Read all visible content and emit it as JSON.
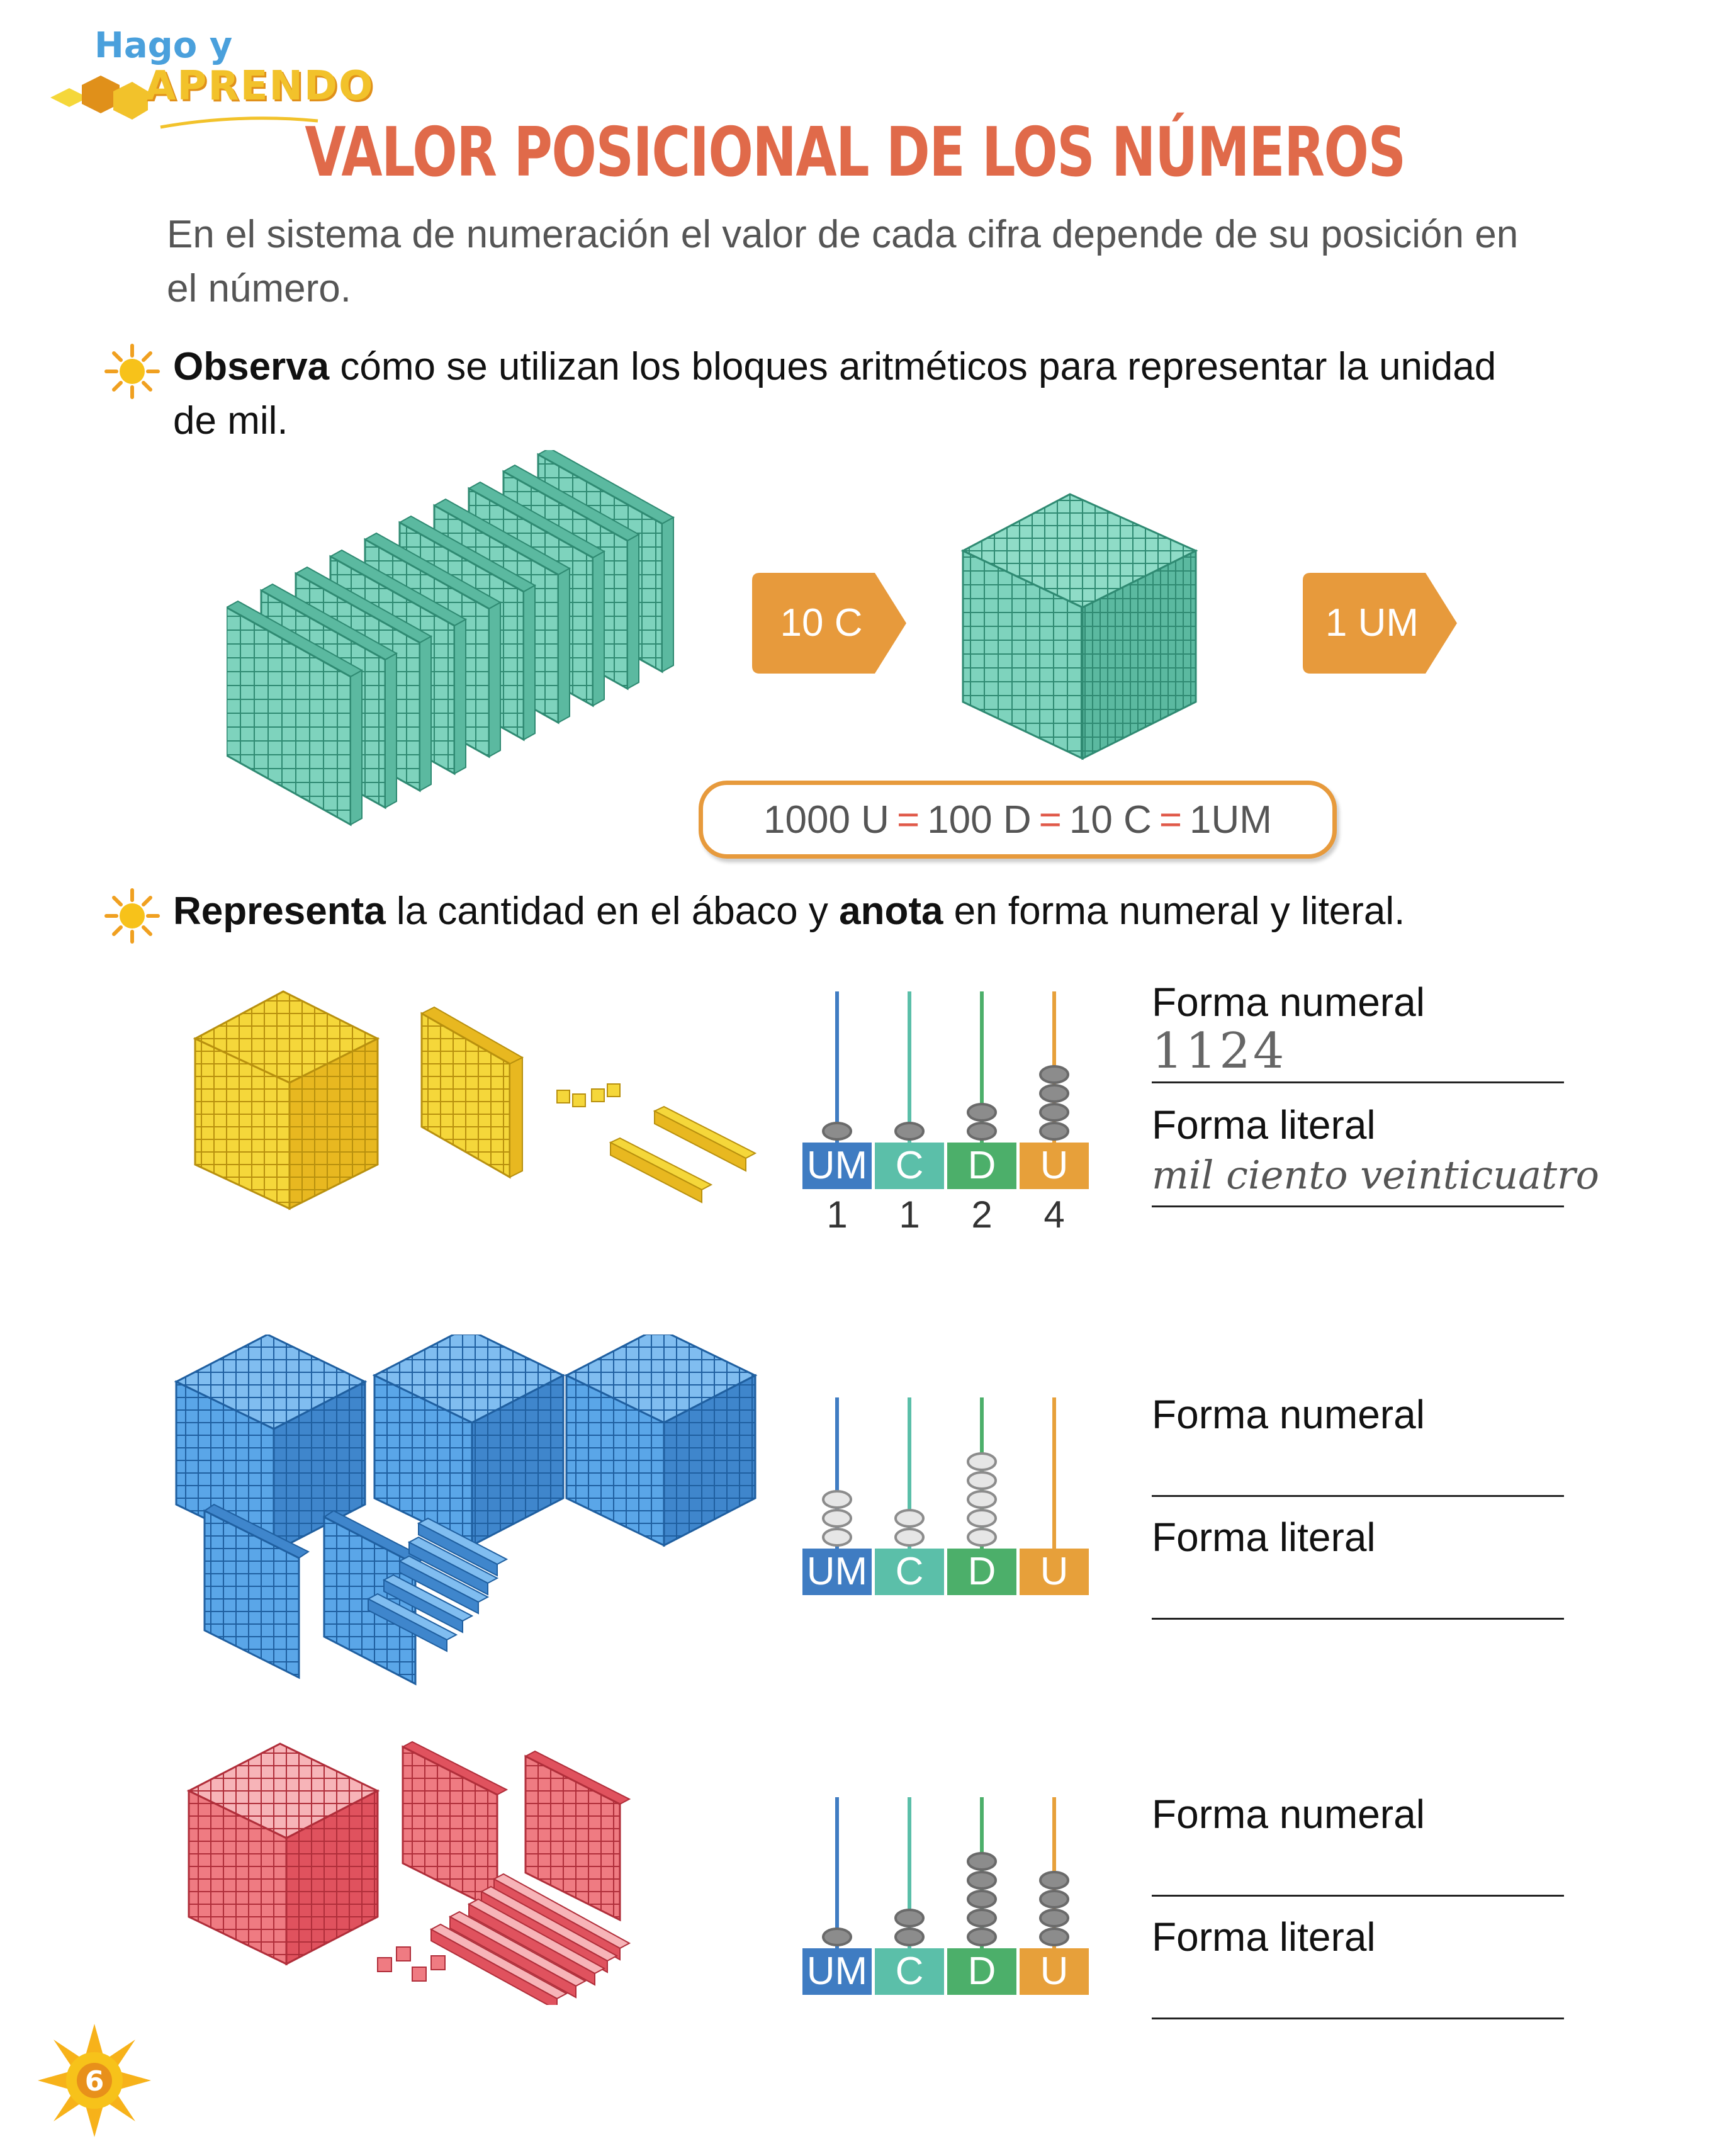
{
  "logo": {
    "line1": "Hago y",
    "line2": "APRENDO"
  },
  "title": "VALOR POSICIONAL DE LOS NÚMEROS",
  "intro": "En el sistema de numeración el valor de cada cifra depende de su posición en el número.",
  "instruction1": {
    "bold": "Observa",
    "rest": " cómo se utilizan los bloques aritméticos para representar la unidad de mil."
  },
  "arrow1": "10 C",
  "arrow2": "1 UM",
  "equation": {
    "a": "1000 U",
    "b": "100 D",
    "c": "10 C",
    "d": "1UM",
    "eq": "="
  },
  "instruction2": {
    "bold1": "Representa",
    "mid": " la cantidad en el ábaco y ",
    "bold2": "anota",
    "rest": " en forma numeral y literal."
  },
  "colors": {
    "title": "#e06a4a",
    "accent_orange": "#e79a3c",
    "um": "#3f7cc2",
    "c": "#5bbfa9",
    "d": "#4caf6a",
    "u": "#e7a03a",
    "block_green": "#7ed3bd",
    "block_yellow": "#f5d73a",
    "block_blue": "#5aa6e8",
    "block_red": "#ef7b82"
  },
  "place_labels": [
    "UM",
    "C",
    "D",
    "U"
  ],
  "exercises": [
    {
      "numeral_label": "Forma numeral",
      "literal_label": "Forma literal",
      "numeral_answer": "1124",
      "literal_answer": "mil ciento veinticuatro",
      "digits": [
        "1",
        "1",
        "2",
        "4"
      ],
      "beads": [
        1,
        1,
        2,
        4
      ],
      "bead_style": "dark"
    },
    {
      "numeral_label": "Forma numeral",
      "literal_label": "Forma literal",
      "numeral_answer": "",
      "literal_answer": "",
      "digits": [],
      "beads": [
        3,
        2,
        5,
        0
      ],
      "bead_style": "light"
    },
    {
      "numeral_label": "Forma numeral",
      "literal_label": "Forma literal",
      "numeral_answer": "",
      "literal_answer": "",
      "digits": [],
      "beads": [
        1,
        2,
        5,
        4
      ],
      "bead_style": "dark"
    }
  ],
  "page_number": "6"
}
